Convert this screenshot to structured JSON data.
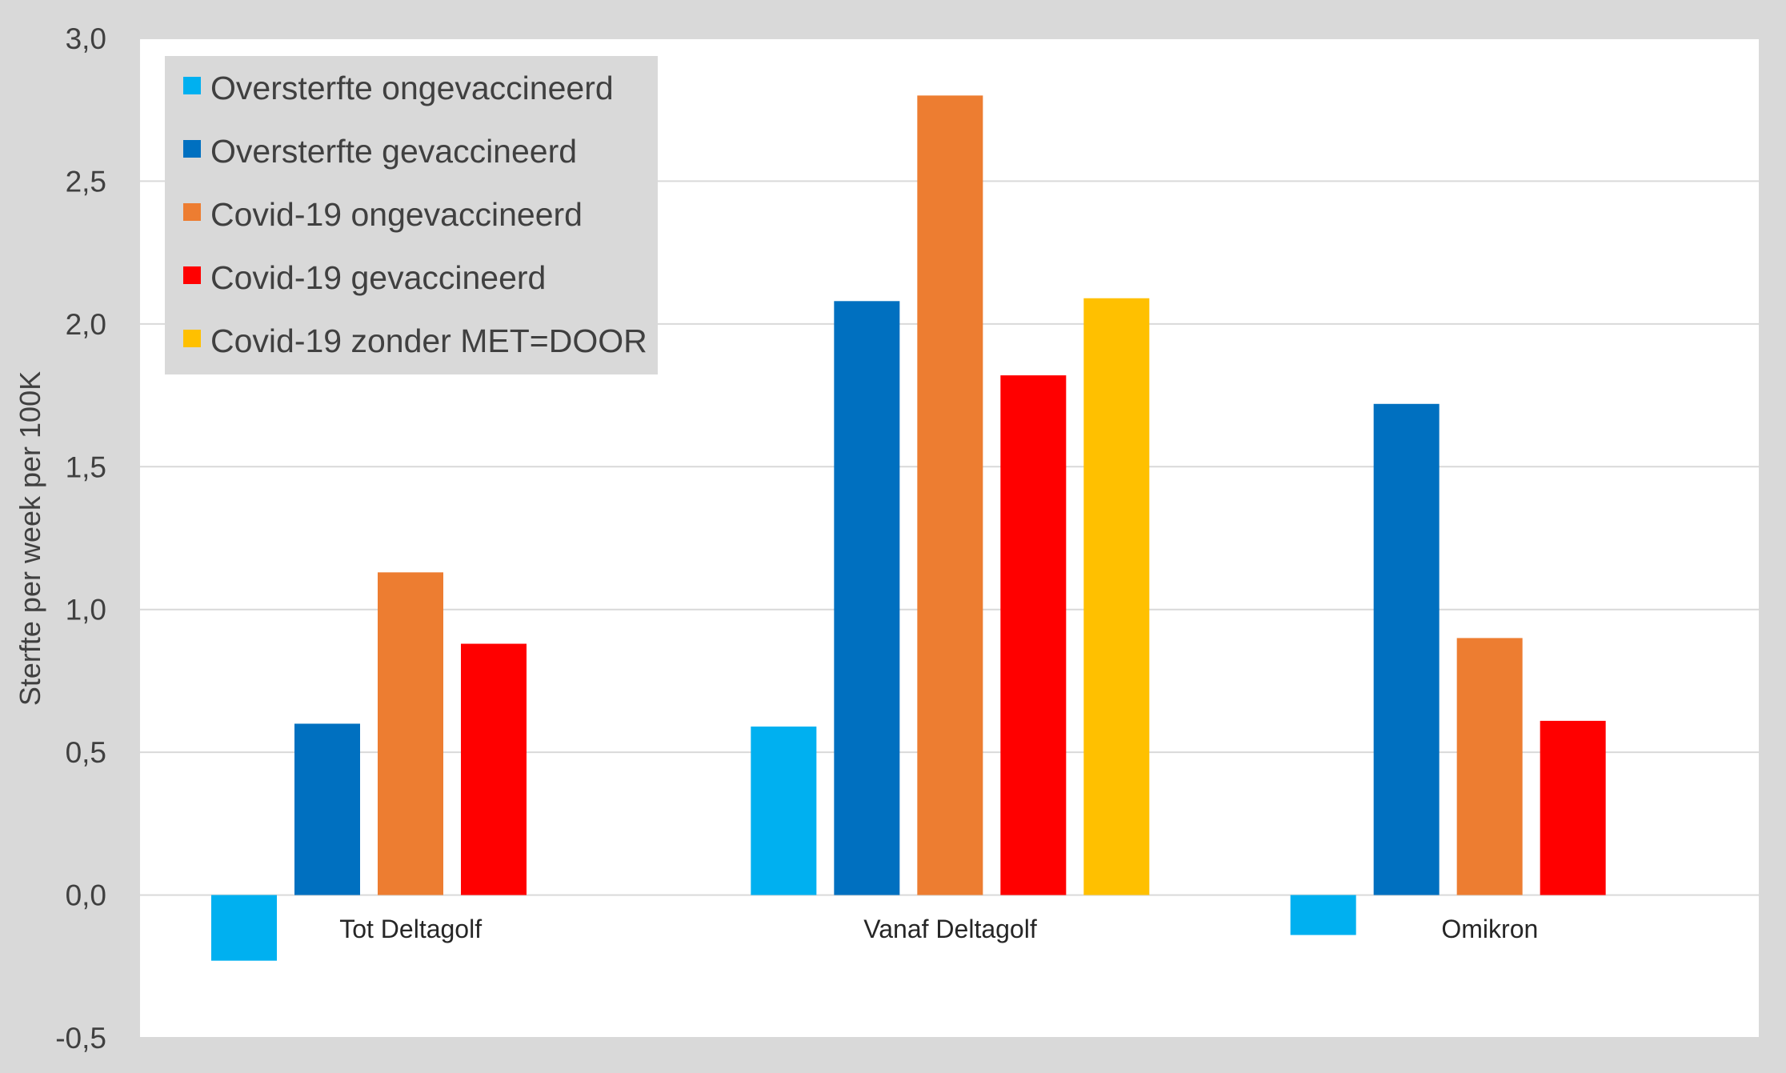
{
  "chart_data": {
    "type": "bar",
    "title": "",
    "xlabel": "",
    "ylabel": "Sterfte per week per 100K",
    "ylim": [
      -0.5,
      3.0
    ],
    "yticks": [
      -0.5,
      0.0,
      0.5,
      1.0,
      1.5,
      2.0,
      2.5,
      3.0
    ],
    "ytick_labels": [
      "-0,5",
      "0,0",
      "0,5",
      "1,0",
      "1,5",
      "2,0",
      "2,5",
      "3,0"
    ],
    "grid": true,
    "legend_position": "top-left",
    "categories": [
      "Tot Deltagolf",
      "Vanaf Deltagolf",
      "Omikron"
    ],
    "series": [
      {
        "name": "Oversterfte ongevaccineerd",
        "color": "#00b0f0",
        "values": [
          -0.23,
          0.59,
          -0.14
        ]
      },
      {
        "name": "Oversterfte gevaccineerd",
        "color": "#0070c0",
        "values": [
          0.6,
          2.08,
          1.72
        ]
      },
      {
        "name": "Covid-19 ongevaccineerd",
        "color": "#ed7d31",
        "values": [
          1.13,
          2.8,
          0.9
        ]
      },
      {
        "name": "Covid-19 gevaccineerd",
        "color": "#ff0000",
        "values": [
          0.88,
          1.82,
          0.61
        ]
      },
      {
        "name": "Covid-19 zonder MET=DOOR",
        "color": "#ffc000",
        "values": [
          null,
          2.09,
          null
        ]
      }
    ]
  }
}
